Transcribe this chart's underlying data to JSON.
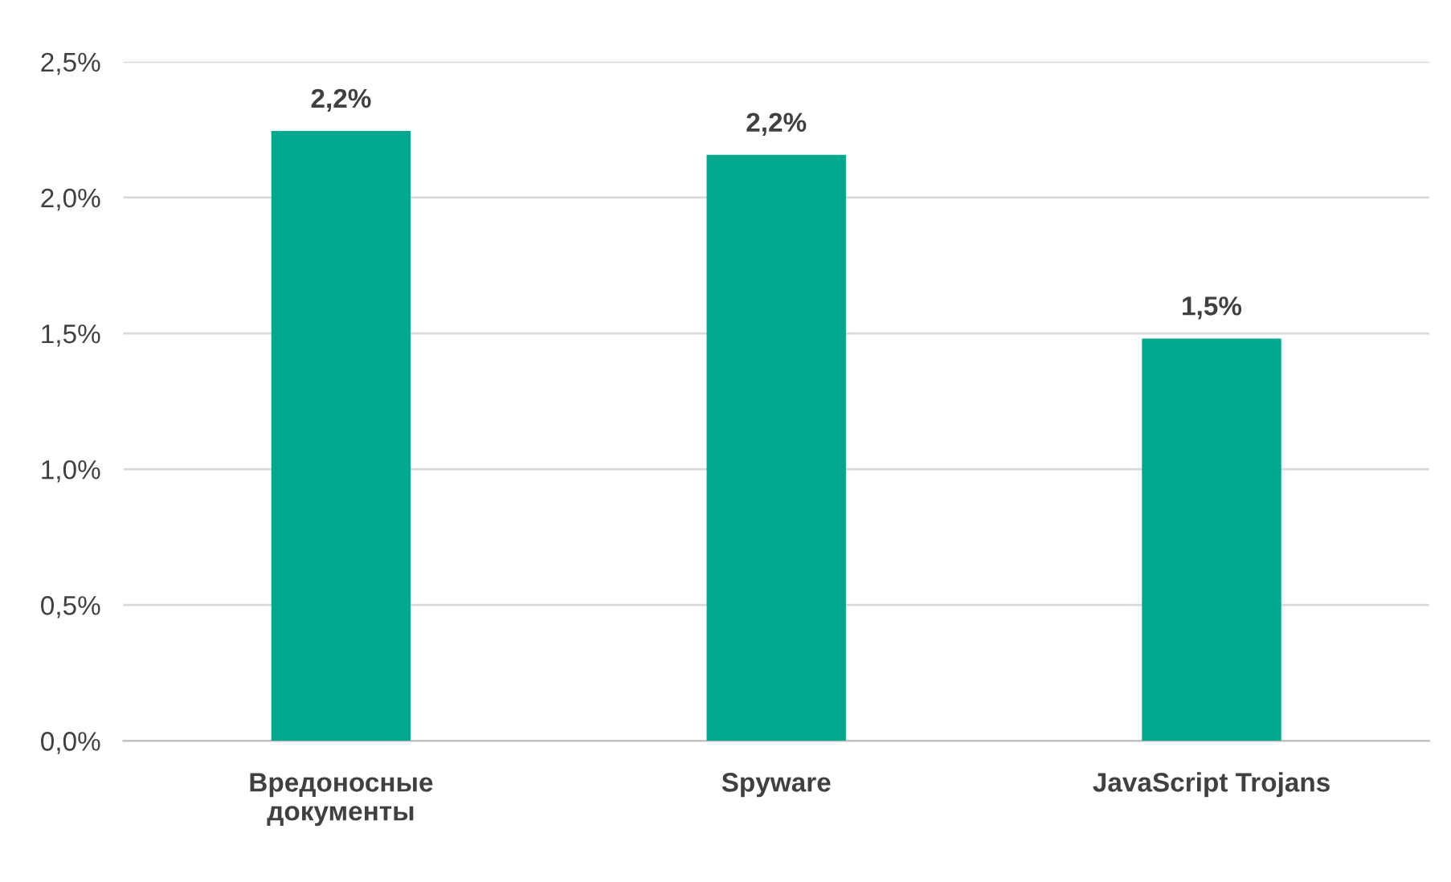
{
  "chart_data": {
    "type": "bar",
    "categories": [
      "Вредоносные документы",
      "Spyware",
      "JavaScript Trojans"
    ],
    "values": [
      2.245,
      2.157,
      1.481
    ],
    "value_labels": [
      "2,2%",
      "2,2%",
      "1,5%"
    ],
    "color": "#00a88e",
    "ylim": [
      0,
      2.5
    ],
    "yticks": [
      {
        "value": 0,
        "label": "0,0%"
      },
      {
        "value": 0.5,
        "label": "0,5%"
      },
      {
        "value": 1.0,
        "label": "1,0%"
      },
      {
        "value": 1.5,
        "label": "1,5%"
      },
      {
        "value": 2.0,
        "label": "2,0%"
      },
      {
        "value": 2.5,
        "label": "2,5%"
      }
    ],
    "grid": "y",
    "legend": false
  }
}
